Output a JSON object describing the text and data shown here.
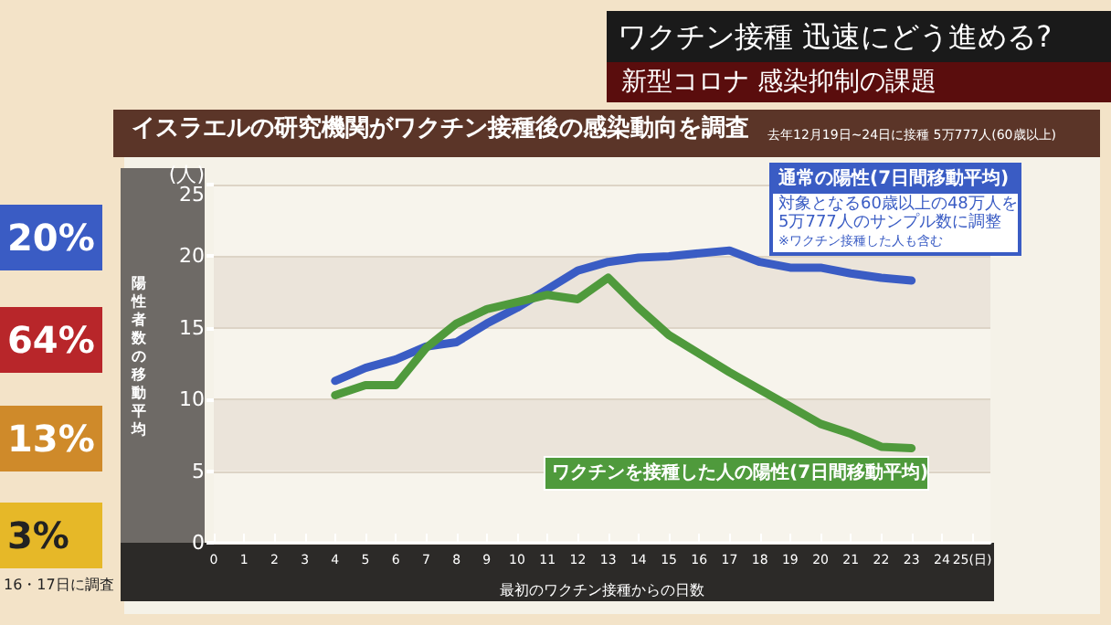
{
  "chart_data": {
    "type": "line",
    "title": "イスラエルの研究機関がワクチン接種後の感染動向を調査",
    "subtitle": "去年12月19日~24日に接種 5万777人(60歳以上)",
    "xlabel": "最初のワクチン接種からの日数",
    "ylabel": "陽性者数の移動平均",
    "x": [
      4,
      5,
      6,
      7,
      8,
      9,
      10,
      11,
      12,
      13,
      14,
      15,
      16,
      17,
      18,
      19,
      20,
      21,
      22,
      23
    ],
    "series": [
      {
        "name": "通常の陽性(7日間移動平均)",
        "color": "#3a5cc4",
        "values": [
          11.3,
          12.2,
          12.8,
          13.7,
          14.0,
          15.3,
          16.4,
          17.7,
          19.0,
          19.6,
          19.9,
          20.0,
          20.2,
          20.4,
          19.6,
          19.2,
          19.2,
          18.8,
          18.5,
          18.3
        ]
      },
      {
        "name": "ワクチンを接種した人の陽性(7日間移動平均)",
        "color": "#4f9a3c",
        "values": [
          10.3,
          11.0,
          11.0,
          13.6,
          15.3,
          16.3,
          16.8,
          17.3,
          17.0,
          18.5,
          16.4,
          14.5,
          13.2,
          11.9,
          10.7,
          9.5,
          8.3,
          7.6,
          6.7,
          6.6
        ]
      }
    ],
    "xlim": [
      0,
      25.6
    ],
    "xticks": [
      0,
      1,
      2,
      3,
      4,
      5,
      6,
      7,
      8,
      9,
      10,
      11,
      12,
      13,
      14,
      15,
      16,
      17,
      18,
      19,
      20,
      21,
      22,
      23,
      24,
      {
        "value": 25,
        "label": "25(日)"
      }
    ],
    "ylim": [
      0,
      25
    ],
    "yticks": [
      0,
      5,
      10,
      15,
      20,
      {
        "value": 25,
        "label": "(人)\n25"
      }
    ],
    "grid": "y",
    "legend": false,
    "marker": "none",
    "line_style": "solid",
    "annotations": [
      "ワクチン接種 迅速にどう進める?",
      "新型コロナ 感染抑制の課題",
      "対象となる60歳以上の48万人を",
      "5万777人のサンプル数に調整",
      "※ワクチン接種した人も含む",
      "20%",
      "64%",
      "13%",
      "3%",
      "16・17日に調査"
    ]
  }
}
